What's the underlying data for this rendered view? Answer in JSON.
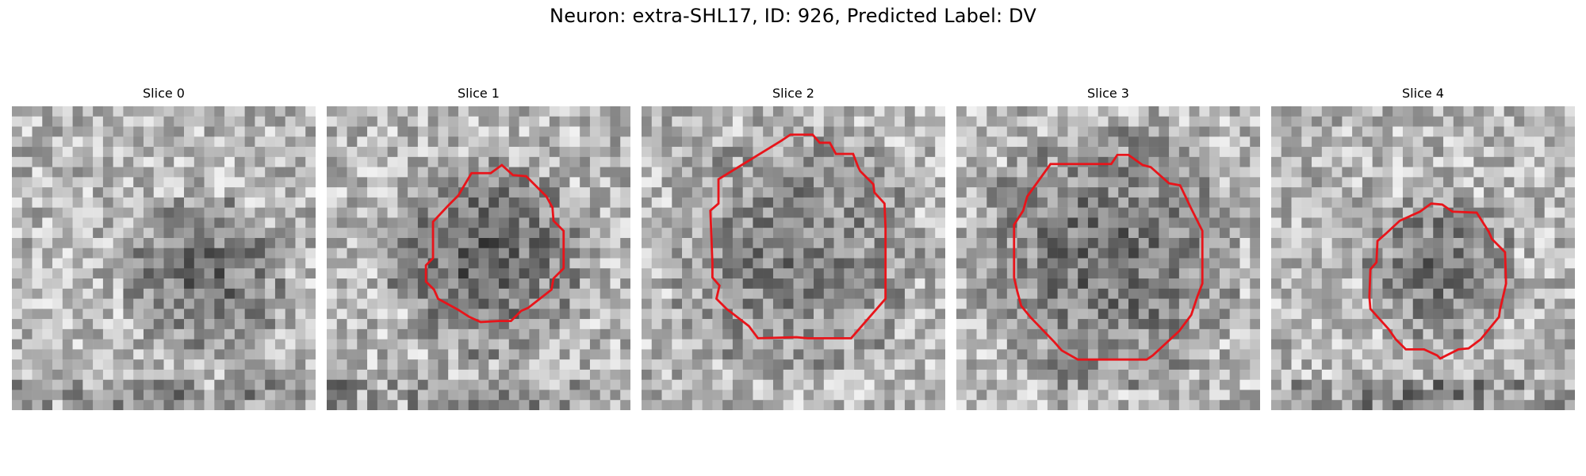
{
  "figure": {
    "title": "Neuron: extra-SHL17, ID: 926, Predicted Label: DV"
  },
  "panels": [
    {
      "title": "Slice 0",
      "has_contour": false,
      "seed": 11,
      "dark_center": [
        0.63,
        0.56
      ],
      "dark_radius": 0.22,
      "dark_strength": 0.35
    },
    {
      "title": "Slice 1",
      "has_contour": true,
      "seed": 23,
      "dark_center": [
        0.52,
        0.5
      ],
      "dark_radius": 0.26,
      "dark_strength": 0.38
    },
    {
      "title": "Slice 2",
      "has_contour": true,
      "seed": 37,
      "dark_center": [
        0.5,
        0.48
      ],
      "dark_radius": 0.34,
      "dark_strength": 0.25
    },
    {
      "title": "Slice 3",
      "has_contour": true,
      "seed": 41,
      "dark_center": [
        0.5,
        0.5
      ],
      "dark_radius": 0.36,
      "dark_strength": 0.32
    },
    {
      "title": "Slice 4",
      "has_contour": true,
      "seed": 53,
      "dark_center": [
        0.56,
        0.52
      ],
      "dark_radius": 0.2,
      "dark_strength": 0.3
    }
  ],
  "colors": {
    "contour": "#e8141a"
  }
}
